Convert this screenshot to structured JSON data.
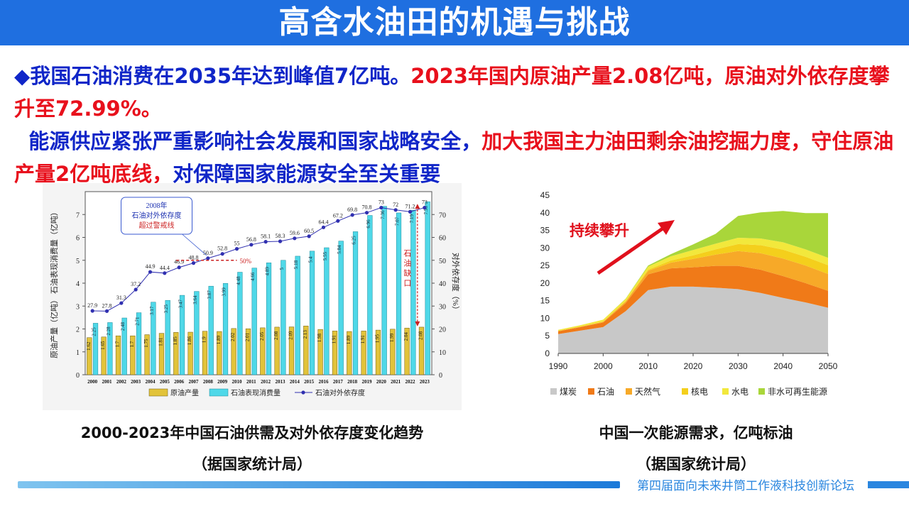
{
  "title": "高含水油田的机遇与挑战",
  "bullet": {
    "marker": "◆",
    "seg1": "我国石油消费在2035年达到峰值7亿吨。",
    "seg2": "2023年国内原油产量2.08亿吨，原油对外依存度攀升至72.99%。",
    "seg3": "能源供应紧张严重影响社会发展和国家战略安全，",
    "seg4": "加大我国主力油田剩余油挖掘力度，守住原油产量2亿吨底线，",
    "seg5": "对保障国家能源安全至关重要"
  },
  "left_caption": {
    "line1": "2000-2023年中国石油供需及对外依存度变化趋势",
    "line2": "（据国家统计局）"
  },
  "right_caption": {
    "line1": "中国一次能源需求，亿吨标油",
    "line2": "（据国家统计局）"
  },
  "footer": "第四届面向未来井筒工作液科技创新论坛",
  "chart_data": [
    {
      "type": "bar",
      "categories": [
        "2000",
        "2001",
        "2002",
        "2003",
        "2004",
        "2005",
        "2006",
        "2007",
        "2008",
        "2009",
        "2010",
        "2011",
        "2012",
        "2013",
        "2014",
        "2015",
        "2016",
        "2017",
        "2018",
        "2019",
        "2020",
        "2021",
        "2022",
        "2023"
      ],
      "series": [
        {
          "name": "原油产量",
          "values": [
            1.62,
            1.65,
            1.7,
            1.7,
            1.75,
            1.81,
            1.85,
            1.86,
            1.9,
            1.89,
            2.02,
            2.01,
            2.05,
            2.08,
            2.09,
            2.13,
            1.98,
            1.91,
            1.89,
            1.91,
            1.95,
            1.99,
            2.04,
            2.08
          ]
        },
        {
          "name": "石油表现消费量",
          "values": [
            2.25,
            2.28,
            2.48,
            2.71,
            3.17,
            3.25,
            3.47,
            3.64,
            3.87,
            3.99,
            4.48,
            4.66,
            4.89,
            5,
            5.18,
            5.4,
            5.55,
            5.84,
            6.25,
            6.96,
            7.36,
            7.07,
            7.19,
            7.56
          ]
        },
        {
          "name": "石油对外依存度",
          "axis": "right",
          "values": [
            27.9,
            27.8,
            31.3,
            37.2,
            44.9,
            44.4,
            46.9,
            48.8,
            50.9,
            52.8,
            55,
            56.8,
            58.1,
            58.3,
            59.6,
            60.5,
            64.4,
            67.2,
            69.8,
            70.8,
            73,
            72,
            71.2,
            73
          ]
        }
      ],
      "ylabel_left": "原油产量（亿吨） 石油表现消费量（亿吨）",
      "ylabel_right": "对外依存度（%）",
      "ylim_left": [
        0,
        8
      ],
      "ylim_right": [
        0,
        80
      ],
      "yticks_left": [
        "0",
        "1",
        "2",
        "3",
        "4",
        "5",
        "6",
        "7"
      ],
      "yticks_right": [
        "0",
        "10",
        "20",
        "30",
        "40",
        "50",
        "60",
        "70"
      ],
      "annotation_box": [
        "2008年",
        "石油对外依存度",
        "超过警戒线"
      ],
      "threshold_label": "50%",
      "gap_label": "石油缺口",
      "legend": [
        "原油产量",
        "石油表现消费量",
        "石油对外依存度"
      ],
      "colors": {
        "production": "#e2c33a",
        "consumption": "#4fd8e8",
        "dependency": "#3030b0",
        "annotation": "#cc2020"
      }
    },
    {
      "type": "area",
      "x": [
        1990,
        1995,
        2000,
        2005,
        2010,
        2015,
        2020,
        2025,
        2030,
        2035,
        2040,
        2045,
        2050
      ],
      "series": [
        {
          "name": "煤炭",
          "values": [
            5.5,
            6.5,
            7.5,
            12,
            18,
            19,
            19,
            18.7,
            18.3,
            17.2,
            15.8,
            14.5,
            13
          ]
        },
        {
          "name": "石油",
          "values": [
            0.8,
            1,
            1.3,
            2.3,
            4.5,
            5.2,
            5.5,
            6.2,
            6.6,
            6.6,
            6.2,
            5.5,
            4.8
          ]
        },
        {
          "name": "天然气",
          "values": [
            0.1,
            0.15,
            0.2,
            0.4,
            1,
            1.6,
            2.4,
            3.2,
            4.2,
            4.7,
            5,
            5,
            4.8
          ]
        },
        {
          "name": "核电",
          "values": [
            0,
            0,
            0.1,
            0.2,
            0.3,
            0.6,
            1,
            1.5,
            2,
            2.3,
            2.5,
            2.5,
            2.5
          ]
        },
        {
          "name": "水电",
          "values": [
            0.3,
            0.4,
            0.5,
            0.6,
            0.9,
            1.2,
            1.5,
            1.6,
            1.8,
            1.9,
            2.1,
            2.1,
            2.1
          ]
        },
        {
          "name": "非水可再生能源",
          "values": [
            0,
            0,
            0,
            0.1,
            0.3,
            0.6,
            1.6,
            2.8,
            6.2,
            7.4,
            8.9,
            10.3,
            12.7
          ]
        }
      ],
      "xticks": [
        "1990",
        "2000",
        "2010",
        "2020",
        "2030",
        "2040",
        "2050"
      ],
      "yticks": [
        "0",
        "5",
        "10",
        "15",
        "20",
        "25",
        "30",
        "35",
        "40",
        "45"
      ],
      "xlim": [
        1990,
        2050
      ],
      "ylim": [
        0,
        45
      ],
      "annotation": "持续攀升",
      "colors": [
        "#c8c8c8",
        "#f07a18",
        "#f7a928",
        "#f4cf1c",
        "#f2e83c",
        "#a9d63a"
      ]
    }
  ]
}
